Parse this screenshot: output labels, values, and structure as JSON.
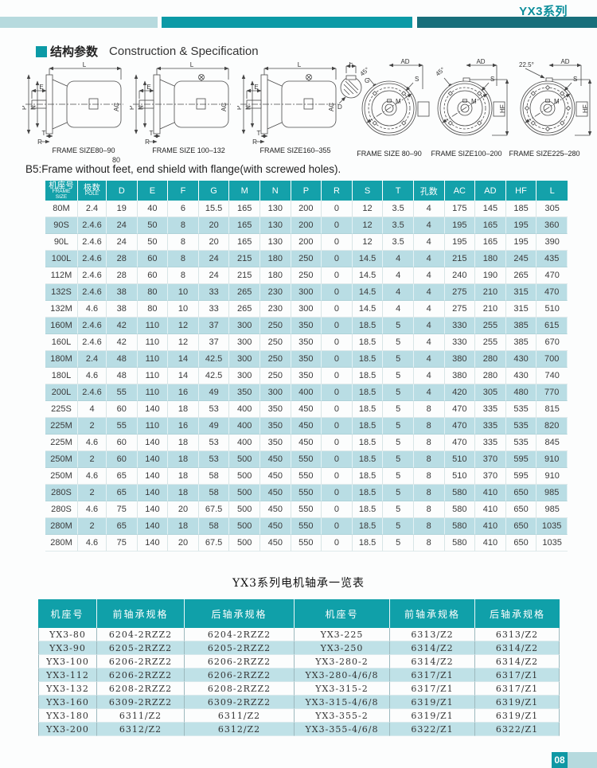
{
  "header": {
    "brand": "YX3系列"
  },
  "section": {
    "title_zh": "结构参数",
    "title_en": "Construction & Specification"
  },
  "drawings": {
    "letters": {
      "L": "L",
      "E": "E",
      "P": "P",
      "N": "N",
      "AC": "AC",
      "T": "T",
      "R": "R",
      "F": "F",
      "G": "G",
      "D": "D",
      "AD": "AD",
      "S": "S",
      "M": "M",
      "HF": "HF",
      "angle45": "45°",
      "angle225": "22.5°"
    },
    "captions": [
      "FRAME SIZE80–90",
      "FRAME SIZE 100–132",
      "FRAME SIZE160–355",
      "FRAME SIZE 80–90",
      "FRAME SIZE100–200",
      "FRAME SIZE225–280"
    ],
    "note_dim": "80"
  },
  "note": "B5:Frame without feet, end shield with flange(with screwed holes).",
  "dim_table": {
    "columns": [
      {
        "zh": "机座号",
        "en": "FRAME SIZE"
      },
      {
        "zh": "极数",
        "en": "POLE"
      },
      {
        "t": "D"
      },
      {
        "t": "E"
      },
      {
        "t": "F"
      },
      {
        "t": "G"
      },
      {
        "t": "M"
      },
      {
        "t": "N"
      },
      {
        "t": "P"
      },
      {
        "t": "R"
      },
      {
        "t": "S"
      },
      {
        "t": "T"
      },
      {
        "t": "孔数"
      },
      {
        "t": "AC"
      },
      {
        "t": "AD"
      },
      {
        "t": "HF"
      },
      {
        "t": "L"
      }
    ],
    "rows": [
      [
        "80M",
        "2.4",
        "19",
        "40",
        "6",
        "15.5",
        "165",
        "130",
        "200",
        "0",
        "12",
        "3.5",
        "4",
        "175",
        "145",
        "185",
        "305"
      ],
      [
        "90S",
        "2.4.6",
        "24",
        "50",
        "8",
        "20",
        "165",
        "130",
        "200",
        "0",
        "12",
        "3.5",
        "4",
        "195",
        "165",
        "195",
        "360"
      ],
      [
        "90L",
        "2.4.6",
        "24",
        "50",
        "8",
        "20",
        "165",
        "130",
        "200",
        "0",
        "12",
        "3.5",
        "4",
        "195",
        "165",
        "195",
        "390"
      ],
      [
        "100L",
        "2.4.6",
        "28",
        "60",
        "8",
        "24",
        "215",
        "180",
        "250",
        "0",
        "14.5",
        "4",
        "4",
        "215",
        "180",
        "245",
        "435"
      ],
      [
        "112M",
        "2.4.6",
        "28",
        "60",
        "8",
        "24",
        "215",
        "180",
        "250",
        "0",
        "14.5",
        "4",
        "4",
        "240",
        "190",
        "265",
        "470"
      ],
      [
        "132S",
        "2.4.6",
        "38",
        "80",
        "10",
        "33",
        "265",
        "230",
        "300",
        "0",
        "14.5",
        "4",
        "4",
        "275",
        "210",
        "315",
        "470"
      ],
      [
        "132M",
        "4.6",
        "38",
        "80",
        "10",
        "33",
        "265",
        "230",
        "300",
        "0",
        "14.5",
        "4",
        "4",
        "275",
        "210",
        "315",
        "510"
      ],
      [
        "160M",
        "2.4.6",
        "42",
        "110",
        "12",
        "37",
        "300",
        "250",
        "350",
        "0",
        "18.5",
        "5",
        "4",
        "330",
        "255",
        "385",
        "615"
      ],
      [
        "160L",
        "2.4.6",
        "42",
        "110",
        "12",
        "37",
        "300",
        "250",
        "350",
        "0",
        "18.5",
        "5",
        "4",
        "330",
        "255",
        "385",
        "670"
      ],
      [
        "180M",
        "2.4",
        "48",
        "110",
        "14",
        "42.5",
        "300",
        "250",
        "350",
        "0",
        "18.5",
        "5",
        "4",
        "380",
        "280",
        "430",
        "700"
      ],
      [
        "180L",
        "4.6",
        "48",
        "110",
        "14",
        "42.5",
        "300",
        "250",
        "350",
        "0",
        "18.5",
        "5",
        "4",
        "380",
        "280",
        "430",
        "740"
      ],
      [
        "200L",
        "2.4.6",
        "55",
        "110",
        "16",
        "49",
        "350",
        "300",
        "400",
        "0",
        "18.5",
        "5",
        "4",
        "420",
        "305",
        "480",
        "770"
      ],
      [
        "225S",
        "4",
        "60",
        "140",
        "18",
        "53",
        "400",
        "350",
        "450",
        "0",
        "18.5",
        "5",
        "8",
        "470",
        "335",
        "535",
        "815"
      ],
      [
        "225M",
        "2",
        "55",
        "110",
        "16",
        "49",
        "400",
        "350",
        "450",
        "0",
        "18.5",
        "5",
        "8",
        "470",
        "335",
        "535",
        "820"
      ],
      [
        "225M",
        "4.6",
        "60",
        "140",
        "18",
        "53",
        "400",
        "350",
        "450",
        "0",
        "18.5",
        "5",
        "8",
        "470",
        "335",
        "535",
        "845"
      ],
      [
        "250M",
        "2",
        "60",
        "140",
        "18",
        "53",
        "500",
        "450",
        "550",
        "0",
        "18.5",
        "5",
        "8",
        "510",
        "370",
        "595",
        "910"
      ],
      [
        "250M",
        "4.6",
        "65",
        "140",
        "18",
        "58",
        "500",
        "450",
        "550",
        "0",
        "18.5",
        "5",
        "8",
        "510",
        "370",
        "595",
        "910"
      ],
      [
        "280S",
        "2",
        "65",
        "140",
        "18",
        "58",
        "500",
        "450",
        "550",
        "0",
        "18.5",
        "5",
        "8",
        "580",
        "410",
        "650",
        "985"
      ],
      [
        "280S",
        "4.6",
        "75",
        "140",
        "20",
        "67.5",
        "500",
        "450",
        "550",
        "0",
        "18.5",
        "5",
        "8",
        "580",
        "410",
        "650",
        "985"
      ],
      [
        "280M",
        "2",
        "65",
        "140",
        "18",
        "58",
        "500",
        "450",
        "550",
        "0",
        "18.5",
        "5",
        "8",
        "580",
        "410",
        "650",
        "1035"
      ],
      [
        "280M",
        "4.6",
        "75",
        "140",
        "20",
        "67.5",
        "500",
        "450",
        "550",
        "0",
        "18.5",
        "5",
        "8",
        "580",
        "410",
        "650",
        "1035"
      ]
    ]
  },
  "bearing_table": {
    "title": "YX3系列电机轴承一览表",
    "columns": [
      "机座号",
      "前轴承规格",
      "后轴承规格",
      "机座号",
      "前轴承规格",
      "后轴承规格"
    ],
    "rows": [
      [
        "YX3-80",
        "6204-2RZZ2",
        "6204-2RZZ2",
        "YX3-225",
        "6313/Z2",
        "6313/Z2"
      ],
      [
        "YX3-90",
        "6205-2RZZ2",
        "6205-2RZZ2",
        "YX3-250",
        "6314/Z2",
        "6314/Z2"
      ],
      [
        "YX3-100",
        "6206-2RZZ2",
        "6206-2RZZ2",
        "YX3-280-2",
        "6314/Z2",
        "6314/Z2"
      ],
      [
        "YX3-112",
        "6206-2RZZ2",
        "6206-2RZZ2",
        "YX3-280-4/6/8",
        "6317/Z1",
        "6317/Z1"
      ],
      [
        "YX3-132",
        "6208-2RZZ2",
        "6208-2RZZ2",
        "YX3-315-2",
        "6317/Z1",
        "6317/Z1"
      ],
      [
        "YX3-160",
        "6309-2RZZ2",
        "6309-2RZZ2",
        "YX3-315-4/6/8",
        "6319/Z1",
        "6319/Z1"
      ],
      [
        "YX3-180",
        "6311/Z2",
        "6311/Z2",
        "YX3-355-2",
        "6319/Z1",
        "6319/Z1"
      ],
      [
        "YX3-200",
        "6312/Z2",
        "6312/Z2",
        "YX3-355-4/6/8",
        "6322/Z1",
        "6322/Z1"
      ]
    ]
  },
  "footer": {
    "page": "08"
  }
}
